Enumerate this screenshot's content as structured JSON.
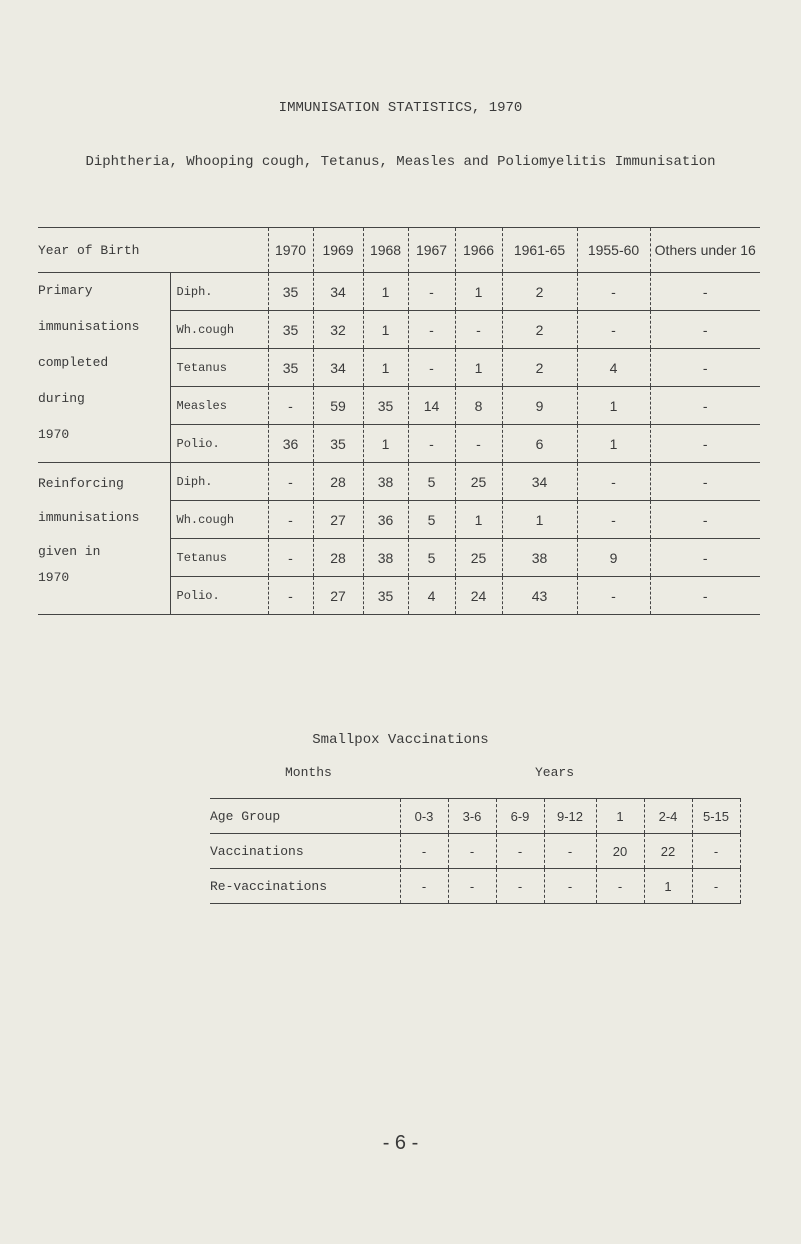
{
  "title": "IMMUNISATION STATISTICS, 1970",
  "subtitle": "Diphtheria, Whooping cough, Tetanus, Measles and Poliomyelitis Immunisation",
  "main_table": {
    "header_label": "Year of Birth",
    "columns": [
      "1970",
      "1969",
      "1968",
      "1967",
      "1966",
      "1961-65",
      "1955-60",
      "Others under 16"
    ],
    "groups": [
      {
        "label_lines": [
          "Primary",
          "immunisations",
          "completed",
          "during",
          "1970"
        ],
        "rows": [
          {
            "label": "Diph.",
            "values": [
              "35",
              "34",
              "1",
              "-",
              "1",
              "2",
              "-",
              "-"
            ]
          },
          {
            "label": "Wh.cough",
            "values": [
              "35",
              "32",
              "1",
              "-",
              "-",
              "2",
              "-",
              "-"
            ]
          },
          {
            "label": "Tetanus",
            "values": [
              "35",
              "34",
              "1",
              "-",
              "1",
              "2",
              "4",
              "-"
            ]
          },
          {
            "label": "Measles",
            "values": [
              "-",
              "59",
              "35",
              "14",
              "8",
              "9",
              "1",
              "-"
            ]
          },
          {
            "label": "Polio.",
            "values": [
              "36",
              "35",
              "1",
              "-",
              "-",
              "6",
              "1",
              "-"
            ]
          }
        ]
      },
      {
        "label_lines": [
          "Reinforcing",
          "immunisations",
          "given in",
          "1970"
        ],
        "rows": [
          {
            "label": "Diph.",
            "values": [
              "-",
              "28",
              "38",
              "5",
              "25",
              "34",
              "-",
              "-"
            ]
          },
          {
            "label": "Wh.cough",
            "values": [
              "-",
              "27",
              "36",
              "5",
              "1",
              "1",
              "-",
              "-"
            ]
          },
          {
            "label": "Tetanus",
            "values": [
              "-",
              "28",
              "38",
              "5",
              "25",
              "38",
              "9",
              "-"
            ]
          },
          {
            "label": "Polio.",
            "values": [
              "-",
              "27",
              "35",
              "4",
              "24",
              "43",
              "-",
              "-"
            ]
          }
        ]
      }
    ]
  },
  "smallpox": {
    "title": "Smallpox Vaccinations",
    "months_label": "Months",
    "years_label": "Years",
    "header_label": "Age Group",
    "columns": [
      "0-3",
      "3-6",
      "6-9",
      "9-12",
      "1",
      "2-4",
      "5-15"
    ],
    "rows": [
      {
        "label": "Vaccinations",
        "values": [
          "-",
          "-",
          "-",
          "-",
          "20",
          "22",
          "-"
        ]
      },
      {
        "label": "Re-vaccinations",
        "values": [
          "-",
          "-",
          "-",
          "-",
          "-",
          "1",
          "-"
        ]
      }
    ]
  },
  "page_number": "- 6 -"
}
